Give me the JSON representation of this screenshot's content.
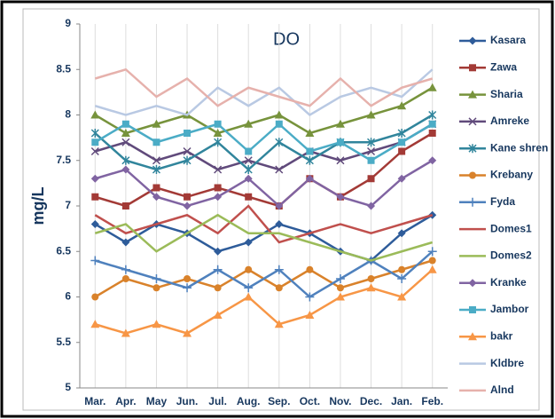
{
  "chart_data": {
    "type": "line",
    "title": "DO",
    "y_label": "mg/L",
    "categories": [
      "Mar.",
      "Apr.",
      "May",
      "Jun.",
      "Jul.",
      "Aug.",
      "Sep.",
      "Oct.",
      "Nov.",
      "Dec.",
      "Jan.",
      "Feb."
    ],
    "ylim": [
      5,
      9
    ],
    "yticks": [
      5,
      5.5,
      6,
      6.5,
      7,
      7.5,
      8,
      8.5,
      9
    ],
    "x_grid": true,
    "series": [
      {
        "name": "Kasara",
        "color": "#2e5c9a",
        "marker": "diamond",
        "values": [
          6.8,
          6.6,
          6.8,
          6.7,
          6.5,
          6.6,
          6.8,
          6.7,
          6.5,
          6.4,
          6.7,
          6.9
        ]
      },
      {
        "name": "Zawa",
        "color": "#a33a36",
        "marker": "square",
        "values": [
          7.1,
          7.0,
          7.2,
          7.1,
          7.2,
          7.1,
          7.0,
          7.3,
          7.1,
          7.3,
          7.6,
          7.8
        ]
      },
      {
        "name": "Sharia",
        "color": "#77933c",
        "marker": "triangle",
        "values": [
          8.0,
          7.8,
          7.9,
          8.0,
          7.8,
          7.9,
          8.0,
          7.8,
          7.9,
          8.0,
          8.1,
          8.3
        ]
      },
      {
        "name": "Amreke",
        "color": "#604a7b",
        "marker": "x",
        "values": [
          7.6,
          7.7,
          7.5,
          7.6,
          7.4,
          7.5,
          7.4,
          7.6,
          7.5,
          7.6,
          7.7,
          7.9
        ]
      },
      {
        "name": "Kane shren",
        "color": "#31859c",
        "marker": "star",
        "values": [
          7.8,
          7.5,
          7.4,
          7.5,
          7.7,
          7.4,
          7.7,
          7.5,
          7.7,
          7.7,
          7.8,
          8.0
        ]
      },
      {
        "name": "Krebany",
        "color": "#d9822b",
        "marker": "circle",
        "values": [
          6.0,
          6.2,
          6.1,
          6.2,
          6.1,
          6.3,
          6.1,
          6.3,
          6.1,
          6.2,
          6.3,
          6.4
        ]
      },
      {
        "name": "Fyda",
        "color": "#4f81bd",
        "marker": "plus",
        "values": [
          6.4,
          6.3,
          6.2,
          6.1,
          6.3,
          6.1,
          6.3,
          6.0,
          6.2,
          6.4,
          6.2,
          6.5
        ]
      },
      {
        "name": "Domes1",
        "color": "#c0504d",
        "marker": "none",
        "values": [
          6.9,
          6.7,
          6.8,
          6.9,
          6.7,
          7.0,
          6.6,
          6.7,
          6.8,
          6.7,
          6.8,
          6.9
        ]
      },
      {
        "name": "Domes2",
        "color": "#9bbb59",
        "marker": "none",
        "values": [
          6.7,
          6.8,
          6.5,
          6.7,
          6.9,
          6.7,
          6.7,
          6.6,
          6.5,
          6.4,
          6.5,
          6.6
        ]
      },
      {
        "name": "Kranke",
        "color": "#8064a2",
        "marker": "diamond",
        "values": [
          7.3,
          7.4,
          7.1,
          7.0,
          7.1,
          7.3,
          7.0,
          7.3,
          7.1,
          7.0,
          7.3,
          7.5
        ]
      },
      {
        "name": "Jambor",
        "color": "#4bacc6",
        "marker": "square",
        "values": [
          7.7,
          7.9,
          7.7,
          7.8,
          7.9,
          7.6,
          7.9,
          7.6,
          7.7,
          7.5,
          7.7,
          7.9
        ]
      },
      {
        "name": "bakr",
        "color": "#f79646",
        "marker": "triangle",
        "values": [
          5.7,
          5.6,
          5.7,
          5.6,
          5.8,
          6.0,
          5.7,
          5.8,
          6.0,
          6.1,
          6.0,
          6.3
        ]
      },
      {
        "name": "Kldbre",
        "color": "#b9c9e3",
        "marker": "none",
        "values": [
          8.1,
          8.0,
          8.1,
          8.0,
          8.3,
          8.1,
          8.3,
          8.0,
          8.2,
          8.3,
          8.2,
          8.5
        ]
      },
      {
        "name": "Alnd",
        "color": "#e6b1ac",
        "marker": "none",
        "values": [
          8.4,
          8.5,
          8.2,
          8.4,
          8.1,
          8.3,
          8.2,
          8.1,
          8.4,
          8.1,
          8.3,
          8.4
        ]
      }
    ]
  }
}
